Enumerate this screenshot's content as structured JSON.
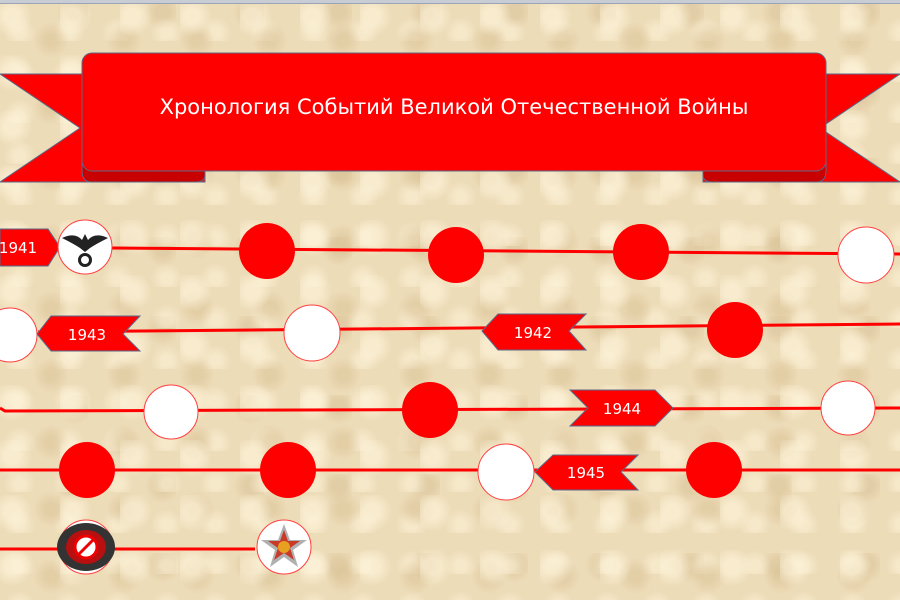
{
  "title": "Хронология Событий Великой Отечественной Войны",
  "colors": {
    "red": "#ff0000",
    "dark_red": "#c80000",
    "outline": "#5a6a8a",
    "background": "#eddcb8"
  },
  "years": {
    "y1941": "1941",
    "y1942": "1942",
    "y1943": "1943",
    "y1944": "1944",
    "y1945": "1945"
  },
  "icons": {
    "start_emblem": "german-eagle-emblem",
    "end_emblem_1": "crossed-out-emblem",
    "end_emblem_2": "soviet-order-star-medal"
  }
}
